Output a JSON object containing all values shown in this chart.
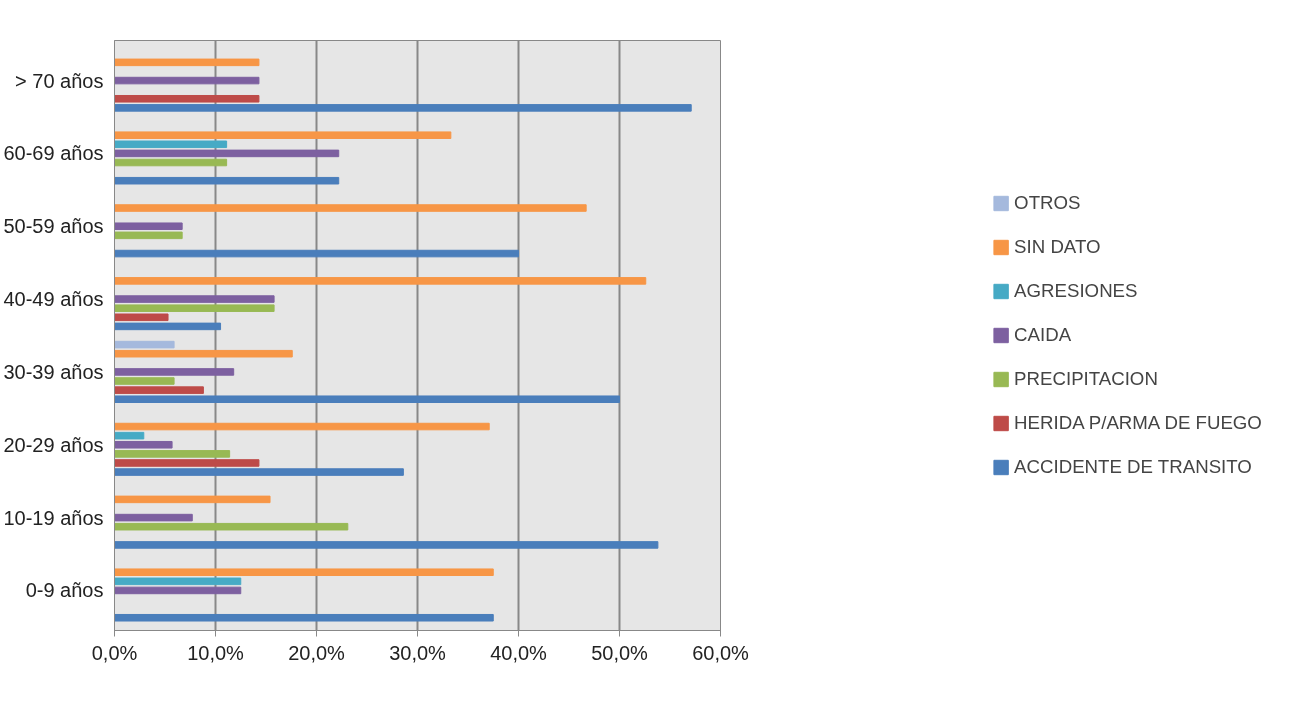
{
  "chart_data": {
    "type": "bar",
    "orientation": "horizontal",
    "categories": [
      "> 70 años",
      "60-69 años",
      "50-59 años",
      "40-49 años",
      "30-39 años",
      "20-29 años",
      "10-19 años",
      "0-9 años"
    ],
    "series": [
      {
        "name": "OTROS",
        "color": "#a5b9dd",
        "values": [
          0,
          0,
          0,
          0,
          5.9,
          0,
          0,
          0
        ]
      },
      {
        "name": "SIN DATO",
        "color": "#f79646",
        "values": [
          14.3,
          33.3,
          46.7,
          52.6,
          17.6,
          37.1,
          15.4,
          37.5
        ]
      },
      {
        "name": "AGRESIONES",
        "color": "#46aac5",
        "values": [
          0,
          11.1,
          0,
          0,
          0,
          2.9,
          0,
          12.5
        ]
      },
      {
        "name": "CAIDA",
        "color": "#7d60a0",
        "values": [
          14.3,
          22.2,
          6.7,
          15.8,
          11.8,
          5.7,
          7.7,
          12.5
        ]
      },
      {
        "name": "PRECIPITACION",
        "color": "#98b954",
        "values": [
          0,
          11.1,
          6.7,
          15.8,
          5.9,
          11.4,
          23.1,
          0
        ]
      },
      {
        "name": "HERIDA P/ARMA DE FUEGO",
        "color": "#be4b48",
        "values": [
          14.3,
          0,
          0,
          5.3,
          8.8,
          14.3,
          0,
          0
        ]
      },
      {
        "name": "ACCIDENTE DE TRANSITO",
        "color": "#4a7ebb",
        "values": [
          57.1,
          22.2,
          40.0,
          10.5,
          50.0,
          28.6,
          53.8,
          37.5
        ]
      }
    ],
    "xlim": [
      0,
      60
    ],
    "xticks": [
      {
        "value": 0,
        "label": "0,0%"
      },
      {
        "value": 10,
        "label": "10,0%"
      },
      {
        "value": 20,
        "label": "20,0%"
      },
      {
        "value": 30,
        "label": "30,0%"
      },
      {
        "value": 40,
        "label": "40,0%"
      },
      {
        "value": 50,
        "label": "50,0%"
      },
      {
        "value": 60,
        "label": "60,0%"
      }
    ],
    "grid": "x",
    "legend": "right"
  }
}
